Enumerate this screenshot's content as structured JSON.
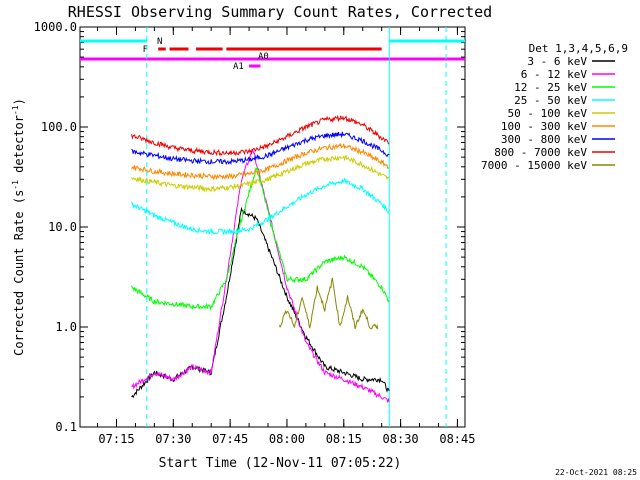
{
  "chart_data": {
    "type": "line",
    "title": "RHESSI Observing Summary Count Rates, Corrected",
    "xlabel": "Start Time (12-Nov-11 07:05:22)",
    "ylabel": "Corrected Count Rate (s",
    "ylabel_sup": "-1",
    "ylabel_tail": " detector",
    "ylabel_sup2": "-1",
    "ylabel_end": ")",
    "yscale": "log",
    "ylim": [
      0.1,
      1000
    ],
    "ytick_labels": [
      "0.1",
      "1.0",
      "10.0",
      "100.0",
      "1000.0"
    ],
    "ytick_values": [
      0.1,
      1,
      10,
      100,
      1000
    ],
    "xlim": [
      "07:05:22",
      "08:47:00"
    ],
    "xtick_labels": [
      "07:15",
      "07:30",
      "07:45",
      "08:00",
      "08:15",
      "08:30",
      "08:45"
    ],
    "legend_title": "Det 1,3,4,5,6,9",
    "legend_position": "right",
    "footer": "22-Oct-2021 08:25",
    "series": [
      {
        "name": "3 - 6 keV",
        "color": "#000000",
        "x": [
          "07:19",
          "07:25",
          "07:30",
          "07:35",
          "07:40",
          "07:44",
          "07:48",
          "07:52",
          "07:56",
          "08:00",
          "08:05",
          "08:10",
          "08:15",
          "08:20",
          "08:25",
          "08:27"
        ],
        "values": [
          0.2,
          0.35,
          0.3,
          0.4,
          0.35,
          2.0,
          15,
          12,
          5,
          2.0,
          0.8,
          0.4,
          0.35,
          0.3,
          0.3,
          0.22
        ]
      },
      {
        "name": "6 - 12 keV",
        "color": "#ff00ff",
        "x": [
          "07:19",
          "07:25",
          "07:30",
          "07:35",
          "07:40",
          "07:44",
          "07:48",
          "07:51",
          "07:55",
          "08:00",
          "08:05",
          "08:10",
          "08:15",
          "08:20",
          "08:25",
          "08:27"
        ],
        "values": [
          0.25,
          0.35,
          0.3,
          0.4,
          0.35,
          3.0,
          30,
          60,
          15,
          2.5,
          0.7,
          0.35,
          0.3,
          0.25,
          0.2,
          0.18
        ]
      },
      {
        "name": "12 - 25 keV",
        "color": "#00ff00",
        "x": [
          "07:19",
          "07:25",
          "07:30",
          "07:35",
          "07:40",
          "07:44",
          "07:48",
          "07:52",
          "07:56",
          "08:00",
          "08:05",
          "08:10",
          "08:15",
          "08:20",
          "08:25",
          "08:27"
        ],
        "values": [
          2.5,
          1.8,
          1.7,
          1.6,
          1.6,
          3.0,
          12,
          40,
          10,
          3.0,
          3.0,
          4.5,
          5.0,
          4.0,
          2.5,
          1.8
        ]
      },
      {
        "name": "25 - 50 keV",
        "color": "#00ffff",
        "x": [
          "07:19",
          "07:25",
          "07:30",
          "07:35",
          "07:40",
          "07:45",
          "07:50",
          "07:55",
          "08:00",
          "08:05",
          "08:10",
          "08:15",
          "08:20",
          "08:25",
          "08:27"
        ],
        "values": [
          17,
          13,
          11,
          9.5,
          9,
          9,
          9.5,
          12,
          16,
          21,
          26,
          29,
          24,
          17,
          14
        ]
      },
      {
        "name": "50 - 100 keV",
        "color": "#cccc00",
        "x": [
          "07:19",
          "07:25",
          "07:30",
          "07:35",
          "07:40",
          "07:45",
          "07:50",
          "07:55",
          "08:00",
          "08:05",
          "08:10",
          "08:15",
          "08:20",
          "08:25",
          "08:27"
        ],
        "values": [
          31,
          28,
          26,
          25,
          24,
          25,
          27,
          30,
          36,
          43,
          48,
          50,
          42,
          33,
          30
        ]
      },
      {
        "name": "100 - 300 keV",
        "color": "#ff8800",
        "x": [
          "07:19",
          "07:25",
          "07:30",
          "07:35",
          "07:40",
          "07:45",
          "07:50",
          "07:55",
          "08:00",
          "08:05",
          "08:10",
          "08:15",
          "08:20",
          "08:25",
          "08:27"
        ],
        "values": [
          40,
          36,
          34,
          33,
          32,
          32,
          34,
          38,
          46,
          55,
          62,
          65,
          56,
          44,
          40
        ]
      },
      {
        "name": "300 - 800 keV",
        "color": "#0000ff",
        "x": [
          "07:19",
          "07:25",
          "07:30",
          "07:35",
          "07:40",
          "07:45",
          "07:50",
          "07:55",
          "08:00",
          "08:05",
          "08:10",
          "08:15",
          "08:20",
          "08:25",
          "08:27"
        ],
        "values": [
          57,
          52,
          48,
          46,
          45,
          45,
          47,
          52,
          62,
          74,
          82,
          85,
          73,
          58,
          52
        ]
      },
      {
        "name": "800 - 7000 keV",
        "color": "#ee0000",
        "x": [
          "07:19",
          "07:25",
          "07:30",
          "07:35",
          "07:40",
          "07:45",
          "07:50",
          "07:55",
          "08:00",
          "08:05",
          "08:10",
          "08:15",
          "08:20",
          "08:25",
          "08:27"
        ],
        "values": [
          82,
          70,
          62,
          58,
          56,
          55,
          57,
          65,
          80,
          100,
          118,
          125,
          105,
          78,
          70
        ]
      },
      {
        "name": "7000 - 15000 keV",
        "color": "#888800",
        "x": [
          "07:58",
          "08:00",
          "08:02",
          "08:04",
          "08:06",
          "08:08",
          "08:10",
          "08:12",
          "08:14",
          "08:16",
          "08:18",
          "08:20",
          "08:22",
          "08:24"
        ],
        "values": [
          1.0,
          1.5,
          1.0,
          2.0,
          1.0,
          2.5,
          1.5,
          3.0,
          1.0,
          2.0,
          1.0,
          1.5,
          1.0,
          1.0
        ]
      }
    ],
    "flag_bars": [
      {
        "label": "N",
        "color": "#00ffff",
        "segments": [
          [
            "07:05:22",
            "07:23"
          ],
          [
            "08:27",
            "08:47"
          ]
        ]
      },
      {
        "label": "F",
        "color": "#ee0000",
        "segments": [
          [
            "07:26",
            "07:28"
          ],
          [
            "07:29",
            "07:34"
          ],
          [
            "07:36",
            "07:43"
          ],
          [
            "07:44",
            "08:25"
          ]
        ]
      },
      {
        "label": "",
        "color": "#ff00ff",
        "segments": [
          [
            "07:05:22",
            "08:47"
          ]
        ]
      },
      {
        "label": "A0",
        "color": "#ff00ff",
        "segments": []
      },
      {
        "label": "A1",
        "color": "#ff00ff",
        "segments": [
          [
            "07:50",
            "07:53"
          ]
        ]
      }
    ],
    "vertical_markers": [
      {
        "time": "07:23",
        "color": "#00ffff",
        "style": "dashed"
      },
      {
        "time": "08:27",
        "color": "#00ffff",
        "style": "solid"
      },
      {
        "time": "08:42",
        "color": "#00ffff",
        "style": "dashed"
      }
    ]
  }
}
